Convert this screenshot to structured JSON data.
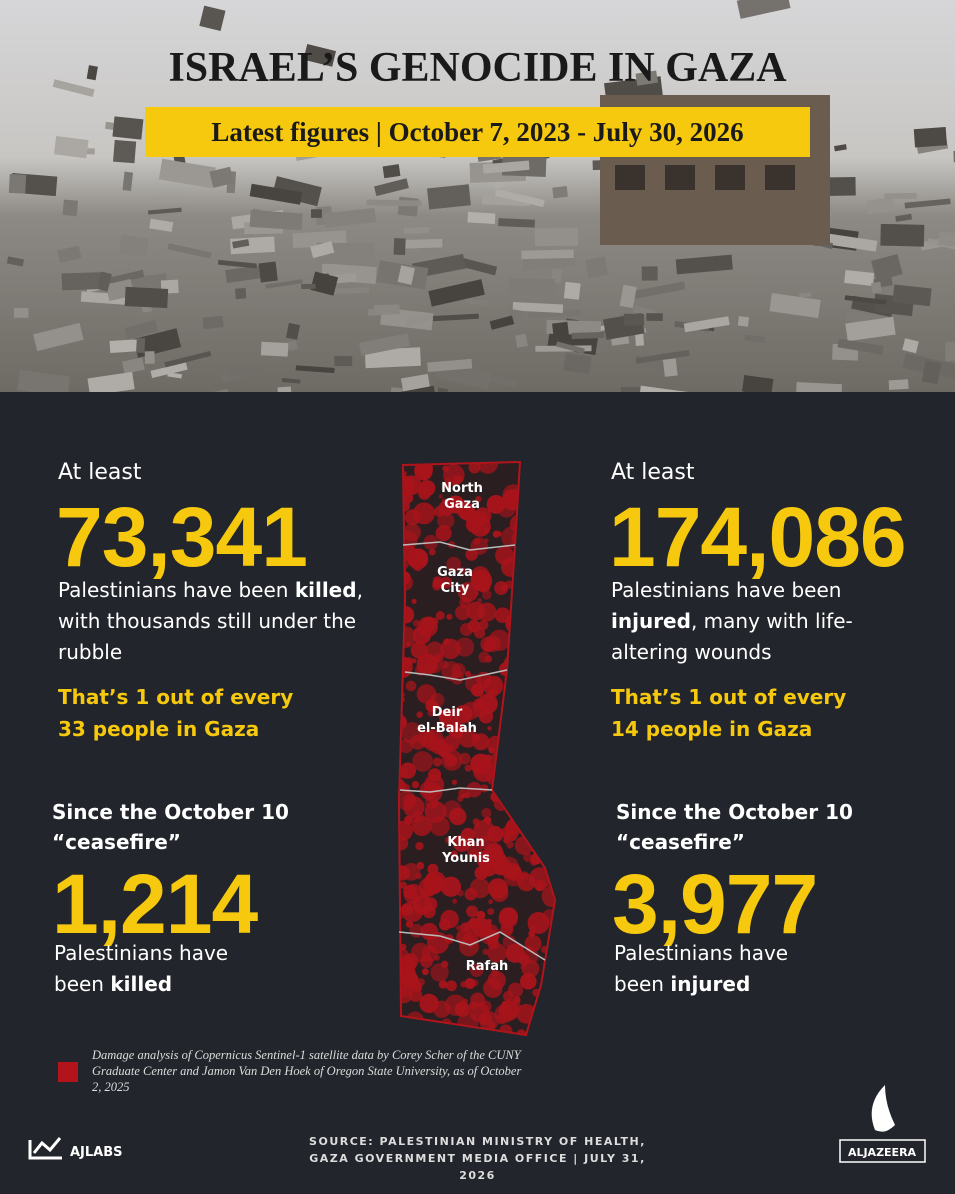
{
  "header": {
    "title": "ISRAEL’S GENOCIDE IN GAZA",
    "subtitle": "Latest figures | October 7, 2023 - July 30, 2026"
  },
  "left": {
    "lead": "At least",
    "figure": "73,341",
    "text": [
      "Palestinians have been ",
      "killed",
      ", with thousands still under the rubble"
    ],
    "ratio": "That’s 1 out of every 33 people in Gaza",
    "since": "Since the October 10 “ceasefire”",
    "since_figure": "1,214",
    "since_text": [
      "Palestinians have been ",
      "killed"
    ]
  },
  "right": {
    "lead": "At least",
    "figure": "174,086",
    "text": [
      "Palestinians have been ",
      "injured",
      ", many with life-altering wounds"
    ],
    "ratio": "That’s 1 out of every 14 people in Gaza",
    "since": "Since the October 10 “ceasefire”",
    "since_figure": "3,977",
    "since_text": [
      "Palestinians have been ",
      "injured"
    ]
  },
  "map": {
    "labels": [
      "North Gaza",
      "Gaza City",
      "Deir el-Balah",
      "Khan Younis",
      "Rafah"
    ]
  },
  "legend": "Damage analysis of Copernicus Sentinel-1 satellite data by  Corey Scher of the CUNY Graduate Center and Jamon Van Den Hoek of Oregon State University, as of  October 2, 2025",
  "footer": {
    "brand": "AJLABS",
    "source": "SOURCE:  PALESTINIAN MINISTRY OF HEALTH, GAZA GOVERNMENT MEDIA OFFICE  |  JULY 31, 2026",
    "logo": "ALJAZEERA"
  }
}
